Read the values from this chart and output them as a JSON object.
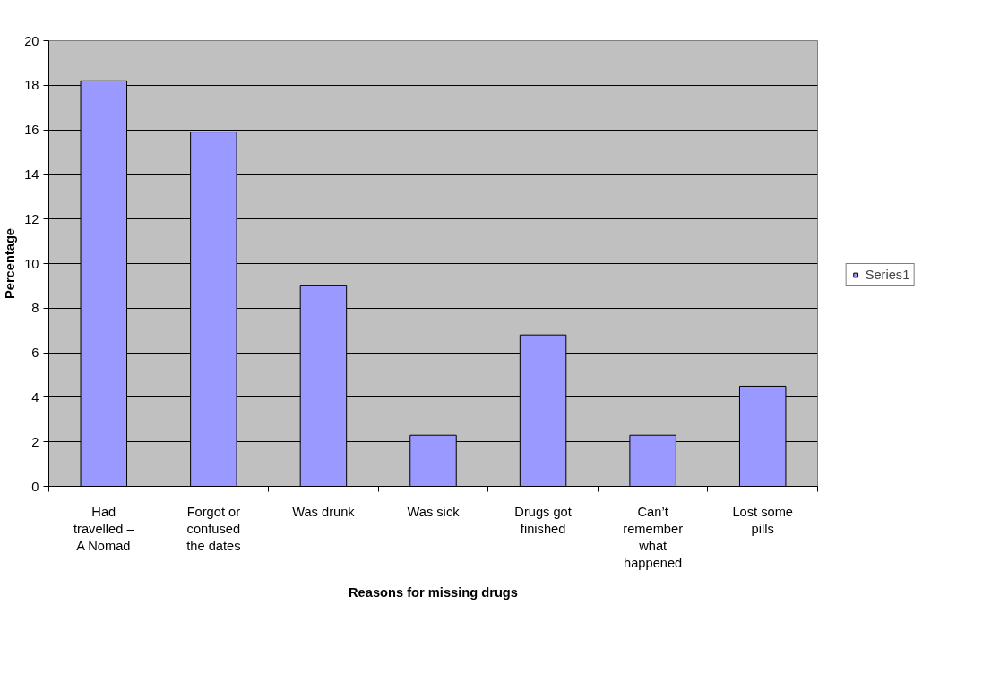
{
  "chart_data": {
    "type": "bar",
    "xlabel": "Reasons for missing drugs",
    "ylabel": "Percentage",
    "categories": [
      "Had travelled – A Nomad",
      "Forgot or confused the dates",
      "Was drunk",
      "Was sick",
      "Drugs got finished",
      "Can’t remember what happened",
      "Lost some pills"
    ],
    "series": [
      {
        "name": "Series1",
        "color": "#9999ff",
        "values": [
          18.2,
          15.9,
          9.0,
          2.3,
          6.8,
          2.3,
          4.5
        ]
      }
    ],
    "ylim": [
      0,
      20
    ],
    "yticks": [
      0,
      2,
      4,
      6,
      8,
      10,
      12,
      14,
      16,
      18,
      20
    ],
    "grid": "y",
    "legend": "right"
  }
}
